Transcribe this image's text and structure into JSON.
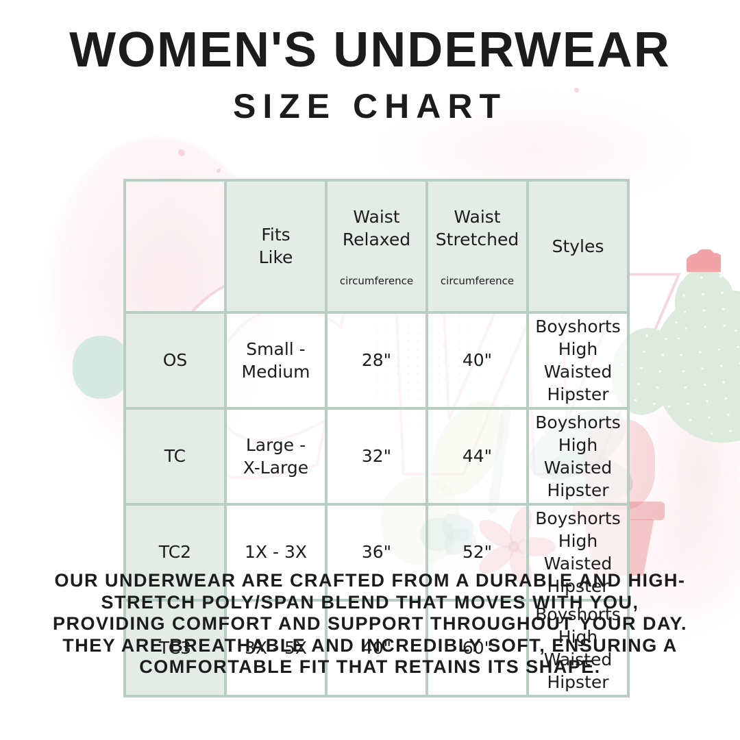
{
  "header": {
    "title": "WOMEN'S UNDERWEAR",
    "subtitle": "SIZE CHART"
  },
  "size_chart": {
    "column_headers": [
      {
        "label": "",
        "sub": ""
      },
      {
        "label": "Fits\nLike",
        "sub": ""
      },
      {
        "label": "Waist\nRelaxed",
        "sub": "circumference"
      },
      {
        "label": "Waist\nStretched",
        "sub": "circumference"
      },
      {
        "label": "Styles",
        "sub": ""
      }
    ],
    "rows": [
      {
        "size": "OS",
        "fits_like": "Small -\nMedium",
        "waist_relaxed": "28\"",
        "waist_stretched": "40\"",
        "styles": "Boyshorts\nHigh Waisted\nHipster"
      },
      {
        "size": "TC",
        "fits_like": "Large -\nX-Large",
        "waist_relaxed": "32\"",
        "waist_stretched": "44\"",
        "styles": "Boyshorts\nHigh Waisted\nHipster"
      },
      {
        "size": "TC2",
        "fits_like": "1X - 3X",
        "waist_relaxed": "36\"",
        "waist_stretched": "52\"",
        "styles": "Boyshorts\nHigh Waisted\nHipster"
      },
      {
        "size": "TC3",
        "fits_like": "3X - 5X",
        "waist_relaxed": "40\"",
        "waist_stretched": "60\"",
        "styles": "Boyshorts\nHigh Waisted\nHipster"
      }
    ]
  },
  "description": {
    "text": "OUR UNDERWEAR ARE CRAFTED FROM A DURABLE AND HIGH-\nSTRETCH POLY/SPAN BLEND THAT MOVES WITH YOU,\nPROVIDING COMFORT AND SUPPORT THROUGHOUT YOUR DAY.\nTHEY ARE BREATHABLE AND INCREDIBLY SOFT, ENSURING A\nCOMFORTABLE FIT THAT RETAINS ITS SHAPE."
  },
  "watermark": {
    "monogram": "CW"
  },
  "colors": {
    "text": "#1c1c1c",
    "table_border": "#b7cec0",
    "label_cell_bg": "#e4ece6",
    "watermark_pink": "#f3cdd3",
    "watermark_red": "#e27b82",
    "cactus_green": "#dcebdd",
    "leaf_teal": "#7fb3a8",
    "leaf_olive": "#c9cf96"
  }
}
